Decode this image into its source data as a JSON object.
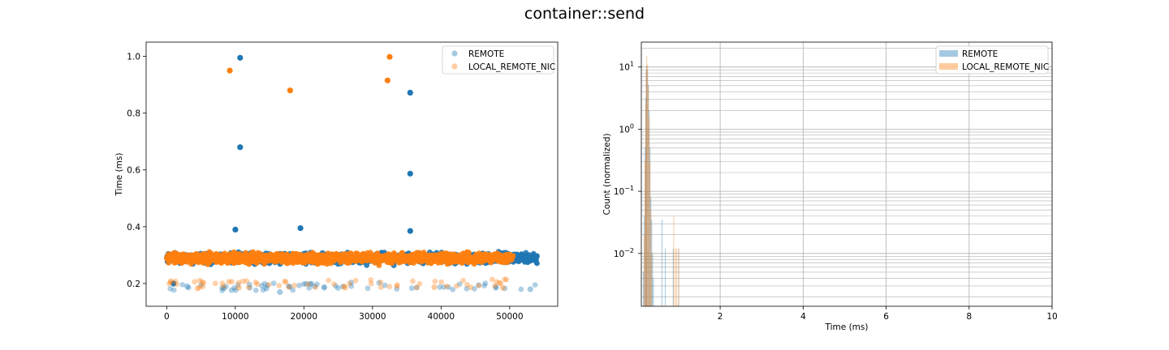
{
  "figure": {
    "title": "container::send"
  },
  "chart_data": [
    {
      "type": "scatter",
      "title": "",
      "xlabel": "",
      "ylabel": "Time (ms)",
      "xlim": [
        -3000,
        57000
      ],
      "ylim": [
        0.12,
        1.05
      ],
      "xticks": [
        0,
        10000,
        20000,
        30000,
        40000,
        50000
      ],
      "xtick_labels": [
        "0",
        "10000",
        "20000",
        "30000",
        "40000",
        "50000"
      ],
      "yticks": [
        0.2,
        0.4,
        0.6,
        0.8,
        1.0
      ],
      "ytick_labels": [
        "0.2",
        "0.4",
        "0.6",
        "0.8",
        "1.0"
      ],
      "grid": false,
      "legend_position": "upper right",
      "series": [
        {
          "name": "REMOTE",
          "color": "#1f77b4",
          "x_range": [
            0,
            54000
          ],
          "y_band": [
            0.21,
            0.36
          ],
          "outliers": [
            [
              10700,
              0.995
            ],
            [
              10700,
              0.68
            ],
            [
              35500,
              0.872
            ],
            [
              35500,
              0.587
            ],
            [
              19500,
              0.395
            ],
            [
              10000,
              0.39
            ],
            [
              35500,
              0.385
            ],
            [
              14500,
              0.183
            ],
            [
              16500,
              0.17
            ],
            [
              53000,
              0.18
            ],
            [
              3000,
              0.19
            ],
            [
              1000,
              0.2
            ]
          ]
        },
        {
          "name": "LOCAL_REMOTE_NIC",
          "color": "#ff7f0e",
          "x_range": [
            0,
            50500
          ],
          "y_band": [
            0.22,
            0.36
          ],
          "outliers": [
            [
              9200,
              0.95
            ],
            [
              18000,
              0.88
            ],
            [
              32200,
              0.915
            ],
            [
              32500,
              0.998
            ],
            [
              4500,
              0.183
            ],
            [
              10500,
              0.185
            ],
            [
              26000,
              0.186
            ],
            [
              39000,
              0.187
            ],
            [
              49000,
              0.185
            ]
          ]
        }
      ]
    },
    {
      "type": "histogram",
      "title": "",
      "xlabel": "Time (ms)",
      "ylabel": "Count (normalized)",
      "xlim": [
        0.1,
        10
      ],
      "ylim_log10": [
        -2.85,
        1.4
      ],
      "yscale": "log",
      "xticks": [
        2,
        4,
        6,
        8,
        10
      ],
      "xtick_labels": [
        "2",
        "4",
        "6",
        "8",
        "10"
      ],
      "yticks_log10": [
        -2,
        -1,
        0,
        1
      ],
      "grid": true,
      "legend_position": "upper right",
      "series": [
        {
          "name": "REMOTE",
          "color": "#1f77b4",
          "alpha": 0.4,
          "bins": [
            [
              0.15,
              0.005
            ],
            [
              0.17,
              0.04
            ],
            [
              0.19,
              0.5
            ],
            [
              0.21,
              3.2
            ],
            [
              0.22,
              8.5
            ],
            [
              0.23,
              10.5
            ],
            [
              0.25,
              9.0
            ],
            [
              0.27,
              5.2
            ],
            [
              0.29,
              2.0
            ],
            [
              0.31,
              0.5
            ],
            [
              0.33,
              0.08
            ],
            [
              0.35,
              0.035
            ],
            [
              0.37,
              0.01
            ],
            [
              0.39,
              0.004
            ],
            [
              0.6,
              0.035
            ],
            [
              0.68,
              0.012
            ],
            [
              0.87,
              0.012
            ],
            [
              1.0,
              0.012
            ]
          ]
        },
        {
          "name": "LOCAL_REMOTE_NIC",
          "color": "#ff7f0e",
          "alpha": 0.4,
          "bins": [
            [
              0.17,
              0.02
            ],
            [
              0.19,
              0.3
            ],
            [
              0.21,
              2.5
            ],
            [
              0.22,
              9.0
            ],
            [
              0.23,
              15.0
            ],
            [
              0.25,
              11.0
            ],
            [
              0.27,
              5.0
            ],
            [
              0.29,
              1.5
            ],
            [
              0.31,
              0.3
            ],
            [
              0.33,
              0.05
            ],
            [
              0.35,
              0.01
            ],
            [
              0.88,
              0.04
            ],
            [
              0.92,
              0.012
            ],
            [
              0.95,
              0.012
            ],
            [
              1.0,
              0.012
            ]
          ]
        }
      ]
    }
  ]
}
